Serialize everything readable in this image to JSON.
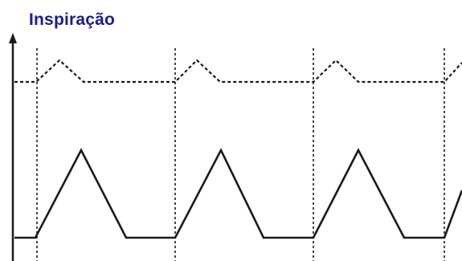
{
  "title": "Inspiração",
  "colors": {
    "title": "#1c1c8f",
    "lines": "#1a1a1a",
    "background": "#ffffff"
  },
  "waveforms": [
    {
      "style": "dashed",
      "shape": "triangular-pulse",
      "cycles": 4
    },
    {
      "style": "solid",
      "shape": "triangular-pulse",
      "cycles": 4
    }
  ],
  "markers": {
    "style": "dotted-vertical",
    "count": 4
  }
}
